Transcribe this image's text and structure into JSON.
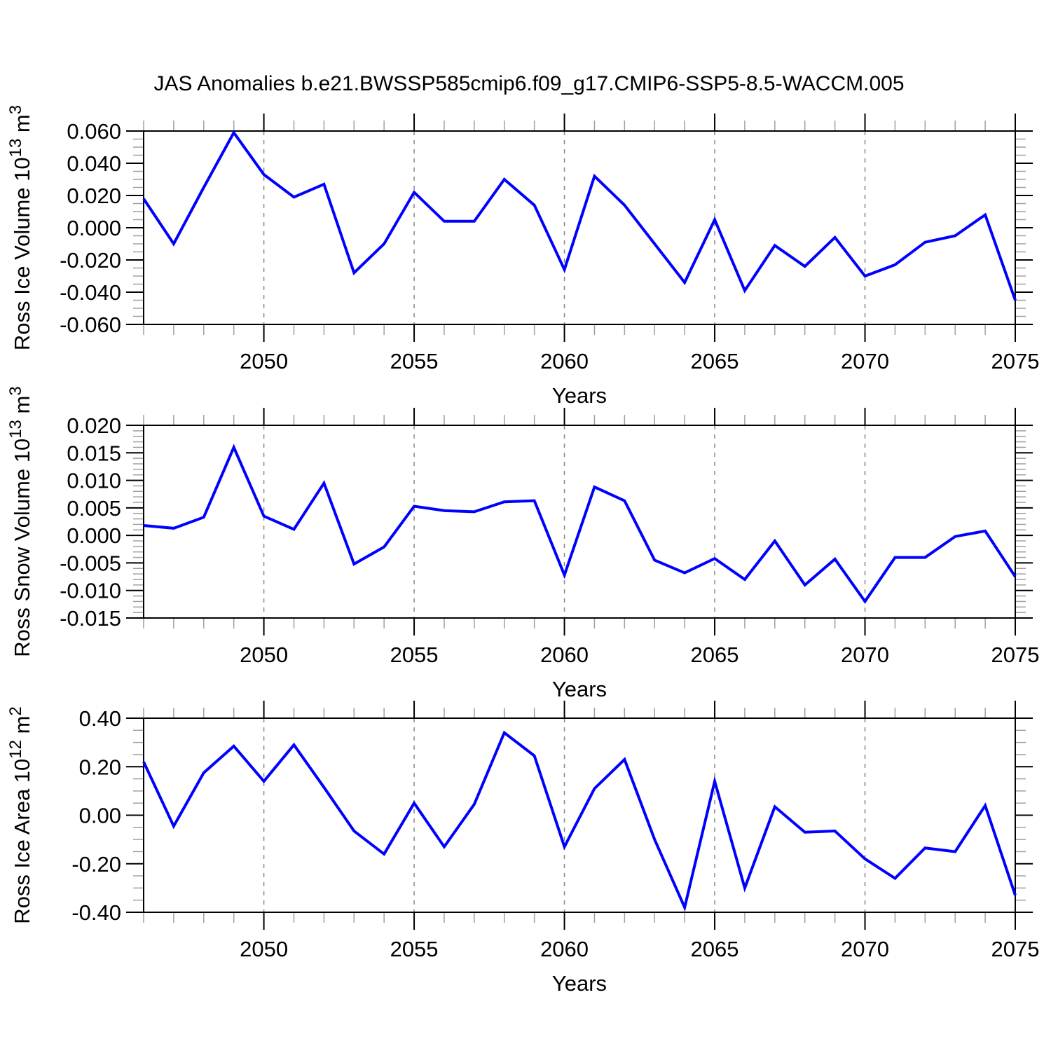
{
  "title": "JAS Anomalies b.e21.BWSSP585cmip6.f09_g17.CMIP6-SSP5-8.5-WACCM.005",
  "line_color": "#0000ff",
  "grid_color": "#888888",
  "minor_tick_color": "#a0a0a0",
  "axis_color": "#000000",
  "x_axis": {
    "label": "Years",
    "range": [
      2046,
      2075
    ],
    "major_ticks": [
      2050,
      2055,
      2060,
      2065,
      2070,
      2075
    ],
    "minor_step": 1
  },
  "years": [
    2046,
    2047,
    2048,
    2049,
    2050,
    2051,
    2052,
    2053,
    2054,
    2055,
    2056,
    2057,
    2058,
    2059,
    2060,
    2061,
    2062,
    2063,
    2064,
    2065,
    2066,
    2067,
    2068,
    2069,
    2070,
    2071,
    2072,
    2073,
    2074,
    2075
  ],
  "chart_data": [
    {
      "type": "line",
      "name": "ross-ice-volume",
      "ylabel": "Ross Ice Volume 10¹³ m³",
      "ylabel_parts": [
        {
          "t": "Ross Ice Volume 10",
          "sup": false
        },
        {
          "t": "13",
          "sup": true
        },
        {
          "t": " m",
          "sup": false
        },
        {
          "t": "3",
          "sup": true
        }
      ],
      "xlabel": "Years",
      "ylim": [
        -0.06,
        0.06
      ],
      "yminor_step": 0.005,
      "yticks": [
        {
          "v": 0.06,
          "label": "0.060"
        },
        {
          "v": 0.04,
          "label": "0.040"
        },
        {
          "v": 0.02,
          "label": "0.020"
        },
        {
          "v": 0.0,
          "label": "0.000"
        },
        {
          "v": -0.02,
          "label": "-0.020"
        },
        {
          "v": -0.04,
          "label": "-0.040"
        },
        {
          "v": -0.06,
          "label": "-0.060"
        }
      ],
      "values": [
        0.018,
        -0.01,
        0.025,
        0.059,
        0.033,
        0.019,
        0.027,
        -0.028,
        -0.01,
        0.022,
        0.004,
        0.004,
        0.03,
        0.014,
        -0.026,
        0.032,
        0.014,
        -0.01,
        -0.034,
        0.005,
        -0.039,
        -0.011,
        -0.024,
        -0.006,
        -0.03,
        -0.023,
        -0.009,
        -0.005,
        0.008,
        -0.045
      ]
    },
    {
      "type": "line",
      "name": "ross-snow-volume",
      "ylabel": "Ross Snow Volume 10¹³ m³",
      "ylabel_parts": [
        {
          "t": "Ross Snow Volume 10",
          "sup": false
        },
        {
          "t": "13",
          "sup": true
        },
        {
          "t": " m",
          "sup": false
        },
        {
          "t": "3",
          "sup": true
        }
      ],
      "xlabel": "Years",
      "ylim": [
        -0.015,
        0.02
      ],
      "yminor_step": 0.001,
      "yticks": [
        {
          "v": 0.02,
          "label": "0.020"
        },
        {
          "v": 0.015,
          "label": "0.015"
        },
        {
          "v": 0.01,
          "label": "0.010"
        },
        {
          "v": 0.005,
          "label": "0.005"
        },
        {
          "v": 0.0,
          "label": "0.000"
        },
        {
          "v": -0.005,
          "label": "-0.005"
        },
        {
          "v": -0.01,
          "label": "-0.010"
        },
        {
          "v": -0.015,
          "label": "-0.015"
        }
      ],
      "values": [
        0.0018,
        0.0013,
        0.0033,
        0.016,
        0.0035,
        0.0011,
        0.0095,
        -0.0052,
        -0.0021,
        0.0053,
        0.0045,
        0.0043,
        0.0061,
        0.0063,
        -0.0072,
        0.0088,
        0.0063,
        -0.0045,
        -0.0068,
        -0.0042,
        -0.008,
        -0.001,
        -0.009,
        -0.0043,
        -0.012,
        -0.004,
        -0.004,
        -0.0002,
        0.0008,
        -0.0075
      ]
    },
    {
      "type": "line",
      "name": "ross-ice-area",
      "ylabel": "Ross Ice Area 10¹² m²",
      "ylabel_parts": [
        {
          "t": "Ross Ice Area 10",
          "sup": false
        },
        {
          "t": "12",
          "sup": true
        },
        {
          "t": " m",
          "sup": false
        },
        {
          "t": "2",
          "sup": true
        }
      ],
      "xlabel": "Years",
      "ylim": [
        -0.4,
        0.4
      ],
      "yminor_step": 0.05,
      "yticks": [
        {
          "v": 0.4,
          "label": "0.40"
        },
        {
          "v": 0.2,
          "label": "0.20"
        },
        {
          "v": 0.0,
          "label": "0.00"
        },
        {
          "v": -0.2,
          "label": "-0.20"
        },
        {
          "v": -0.4,
          "label": "-0.40"
        }
      ],
      "values": [
        0.22,
        -0.045,
        0.175,
        0.285,
        0.14,
        0.29,
        0.115,
        -0.065,
        -0.16,
        0.05,
        -0.13,
        0.045,
        0.34,
        0.245,
        -0.13,
        0.11,
        0.23,
        -0.1,
        -0.38,
        0.14,
        -0.3,
        0.035,
        -0.07,
        -0.065,
        -0.18,
        -0.26,
        -0.135,
        -0.15,
        0.04,
        -0.33
      ]
    }
  ]
}
